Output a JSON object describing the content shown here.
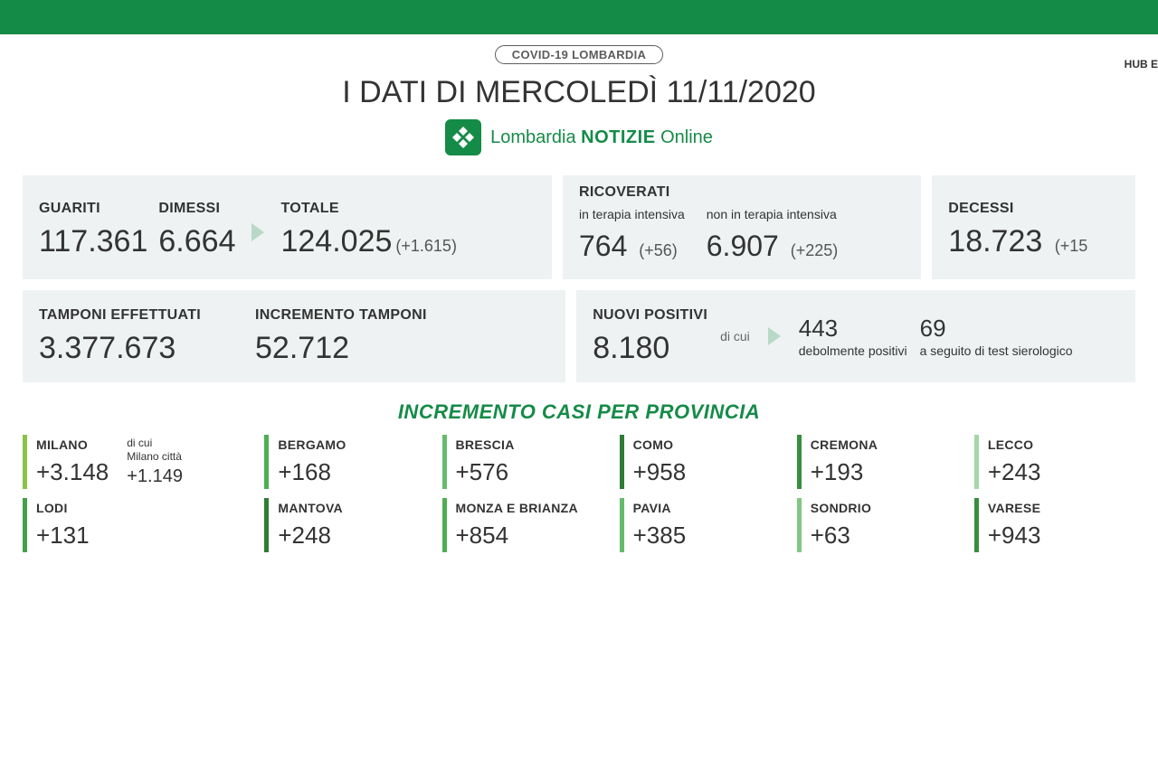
{
  "colors": {
    "green_primary": "#158b48",
    "card_bg": "#eef2f2",
    "text": "#333333",
    "text_muted": "#555555"
  },
  "header": {
    "badge": "COVID-19 LOMBARDIA",
    "hub": "HUB E",
    "title": "I DATI DI MERCOLEDÌ 11/11/2020",
    "logo_text_pre": "Lombardia",
    "logo_text_mid": "NOTIZIE",
    "logo_text_post": "Online"
  },
  "row1": {
    "guariti": {
      "label": "GUARITI",
      "value": "117.361"
    },
    "dimessi": {
      "label": "DIMESSI",
      "value": "6.664"
    },
    "totale": {
      "label": "TOTALE",
      "value": "124.025",
      "delta": "(+1.615)"
    },
    "ricoverati": {
      "label": "RICOVERATI",
      "intensiva": {
        "label": "in terapia intensiva",
        "value": "764",
        "delta": "(+56)"
      },
      "non_intensiva": {
        "label": "non in terapia intensiva",
        "value": "6.907",
        "delta": "(+225)"
      }
    },
    "decessi": {
      "label": "DECESSI",
      "value": "18.723",
      "delta": "(+15"
    }
  },
  "row2": {
    "tamponi": {
      "label": "TAMPONI EFFETTUATI",
      "value": "3.377.673"
    },
    "incremento": {
      "label": "INCREMENTO TAMPONI",
      "value": "52.712"
    },
    "nuovi": {
      "label": "NUOVI POSITIVI",
      "value": "8.180",
      "dicui": "di cui",
      "deb": {
        "value": "443",
        "label": "debolmente positivi"
      },
      "siero": {
        "value": "69",
        "label": "a seguito di test sierologico"
      }
    }
  },
  "province_title": "INCREMENTO CASI PER PROVINCIA",
  "provinces": [
    {
      "name": "MILANO",
      "value": "+3.148",
      "color": "#8bc34a",
      "extra_label": "di cui Milano città",
      "extra_value": "+1.149"
    },
    {
      "name": "BERGAMO",
      "value": "+168",
      "color": "#4caf50"
    },
    {
      "name": "BRESCIA",
      "value": "+576",
      "color": "#66bb6a"
    },
    {
      "name": "COMO",
      "value": "+958",
      "color": "#2e7d32"
    },
    {
      "name": "CREMONA",
      "value": "+193",
      "color": "#388e3c"
    },
    {
      "name": "LECCO",
      "value": "+243",
      "color": "#a5d6a7"
    },
    {
      "name": "LODI",
      "value": "+131",
      "color": "#43a047"
    },
    {
      "name": "MANTOVA",
      "value": "+248",
      "color": "#2e7d32"
    },
    {
      "name": "MONZA E BRIANZA",
      "value": "+854",
      "color": "#4caf50"
    },
    {
      "name": "PAVIA",
      "value": "+385",
      "color": "#66bb6a"
    },
    {
      "name": "SONDRIO",
      "value": "+63",
      "color": "#81c784"
    },
    {
      "name": "VARESE",
      "value": "+943",
      "color": "#388e3c"
    }
  ]
}
